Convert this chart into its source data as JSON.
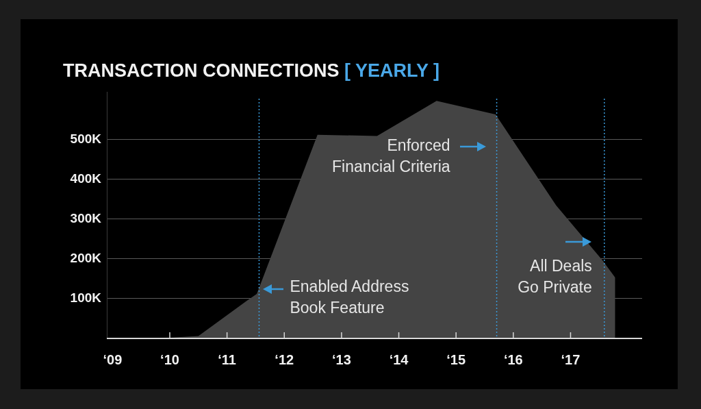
{
  "chart_data": {
    "type": "area",
    "title": "TRANSACTION CONNECTIONS [ YEARLY ]",
    "x": [
      9,
      10,
      10.5,
      11.35,
      11.52,
      12.58,
      13.62,
      14.66,
      15.69,
      16.75,
      17.56,
      17.78
    ],
    "series": [
      {
        "color": "#444444",
        "values": [
          0,
          2000,
          6000,
          95000,
          112000,
          512000,
          509000,
          597000,
          563000,
          334000,
          196000,
          153000
        ]
      }
    ],
    "xlim": [
      8.9,
      18.25
    ],
    "xticks": [
      {
        "value": 9,
        "label": "‘09"
      },
      {
        "value": 10,
        "label": "‘10"
      },
      {
        "value": 11,
        "label": "‘11"
      },
      {
        "value": 12,
        "label": "‘12"
      },
      {
        "value": 13,
        "label": "‘13"
      },
      {
        "value": 14,
        "label": "‘14"
      },
      {
        "value": 15,
        "label": "‘15"
      },
      {
        "value": 16,
        "label": "‘16"
      },
      {
        "value": 17,
        "label": "‘17"
      }
    ],
    "yticks": [
      {
        "value": 100000,
        "label": "100K"
      },
      {
        "value": 200000,
        "label": "200K"
      },
      {
        "value": 300000,
        "label": "300K"
      },
      {
        "value": 400000,
        "label": "400K"
      },
      {
        "value": 500000,
        "label": "500K"
      }
    ],
    "ylim": [
      0,
      620000
    ],
    "grid": "y",
    "ref_lines": [
      {
        "axis": "x",
        "value": 11.56,
        "label": "Enabled Address\nBook Feature",
        "color": "#3a9ad9",
        "line_style": "dotted"
      },
      {
        "axis": "x",
        "value": 15.71,
        "label": "Enforced\nFinancial Criteria",
        "color": "#3a9ad9",
        "line_style": "dotted"
      },
      {
        "axis": "x",
        "value": 17.59,
        "label": "All Deals\nGo Private",
        "color": "#3a9ad9",
        "line_style": "dotted"
      }
    ]
  }
}
